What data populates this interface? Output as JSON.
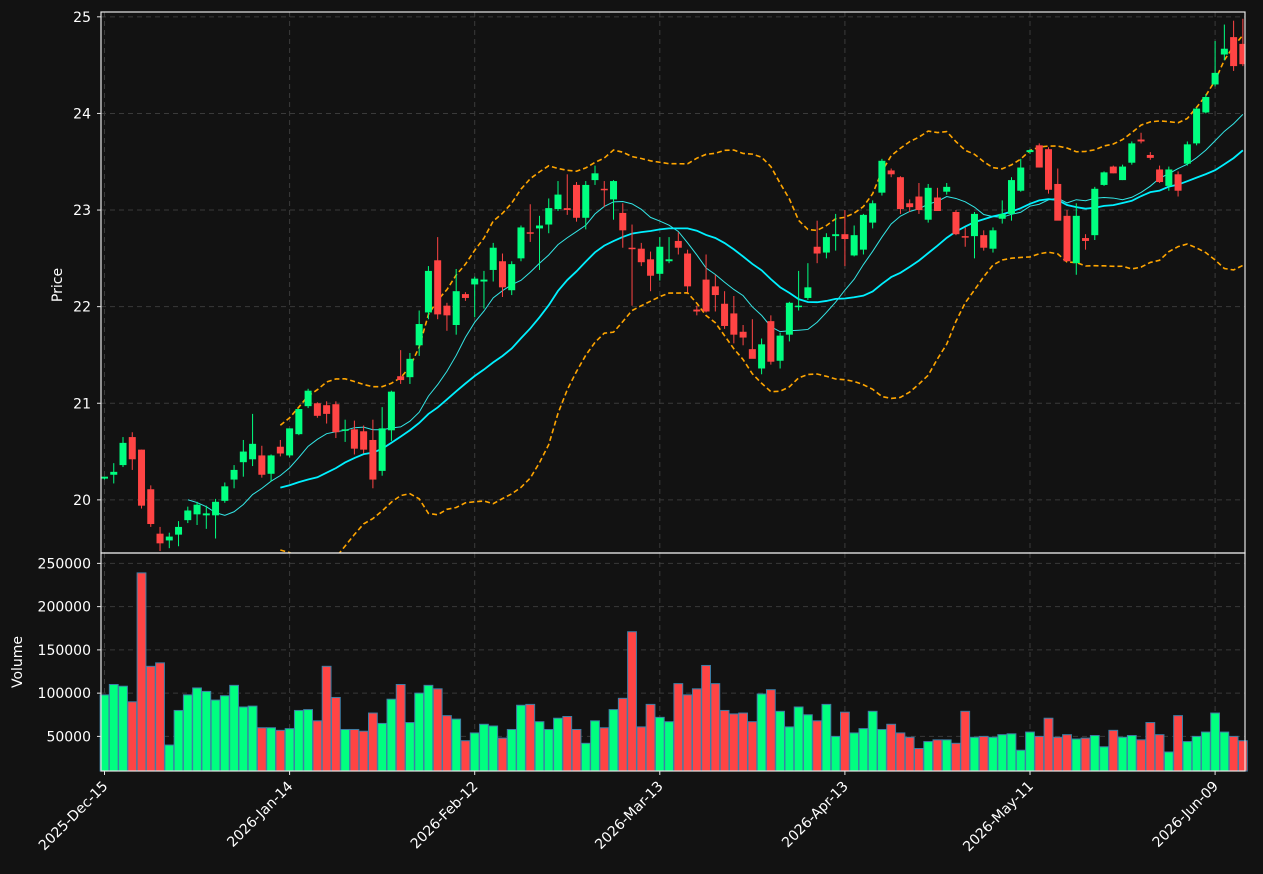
{
  "chart_data": {
    "type": "candlestick",
    "colors": {
      "background": "#121212",
      "up": "#00ff80",
      "down": "#ff4444",
      "volume_edge": "#3d7fa6",
      "mav_fast": "#33e6e6",
      "mav_slow": "#00f0ff",
      "bands": "#ffa500",
      "grid": "#3a3a3a",
      "text": "#ffffff"
    },
    "price_panel": {
      "ylabel": "Price",
      "ylim": [
        19.45,
        25.05
      ],
      "yticks": [
        20,
        21,
        22,
        23,
        24,
        25
      ]
    },
    "volume_panel": {
      "ylabel": "Volume",
      "ylim": [
        10000,
        262000
      ],
      "yticks": [
        50000,
        100000,
        150000,
        200000,
        250000
      ]
    },
    "x_ticks": [
      {
        "index": 0,
        "label": "2025-Dec-15"
      },
      {
        "index": 20,
        "label": "2026-Jan-14"
      },
      {
        "index": 40,
        "label": "2026-Feb-12"
      },
      {
        "index": 60,
        "label": "2026-Mar-13"
      },
      {
        "index": 80,
        "label": "2026-Apr-13"
      },
      {
        "index": 100,
        "label": "2026-May-11"
      },
      {
        "index": 120,
        "label": "2026-Jun-09"
      }
    ],
    "ohlc": [
      [
        20.22,
        20.24,
        20.21,
        20.24
      ],
      [
        20.26,
        20.38,
        20.17,
        20.29
      ],
      [
        20.36,
        20.65,
        20.34,
        20.59
      ],
      [
        20.65,
        20.7,
        20.31,
        20.42
      ],
      [
        20.52,
        20.52,
        19.91,
        19.94
      ],
      [
        20.11,
        20.15,
        19.72,
        19.75
      ],
      [
        19.65,
        19.72,
        19.47,
        19.55
      ],
      [
        19.58,
        19.66,
        19.5,
        19.62
      ],
      [
        19.64,
        19.78,
        19.52,
        19.72
      ],
      [
        19.79,
        19.93,
        19.76,
        19.89
      ],
      [
        19.85,
        19.98,
        19.74,
        19.95
      ],
      [
        19.84,
        19.94,
        19.7,
        19.86
      ],
      [
        19.84,
        20.01,
        19.6,
        19.98
      ],
      [
        19.99,
        20.18,
        19.97,
        20.14
      ],
      [
        20.21,
        20.36,
        20.12,
        20.31
      ],
      [
        20.39,
        20.62,
        20.24,
        20.5
      ],
      [
        20.42,
        20.89,
        20.35,
        20.58
      ],
      [
        20.46,
        20.56,
        20.23,
        20.26
      ],
      [
        20.27,
        20.47,
        20.19,
        20.46
      ],
      [
        20.55,
        20.62,
        20.45,
        20.48
      ],
      [
        20.46,
        20.74,
        20.44,
        20.74
      ],
      [
        20.68,
        20.94,
        20.67,
        20.94
      ],
      [
        20.97,
        21.15,
        20.95,
        21.13
      ],
      [
        21.0,
        21.01,
        20.85,
        20.87
      ],
      [
        20.98,
        21.02,
        20.79,
        20.89
      ],
      [
        20.99,
        21.02,
        20.64,
        20.7
      ],
      [
        20.72,
        20.83,
        20.6,
        20.73
      ],
      [
        20.73,
        20.82,
        20.47,
        20.53
      ],
      [
        20.71,
        20.77,
        20.48,
        20.52
      ],
      [
        20.62,
        20.83,
        20.12,
        20.21
      ],
      [
        20.3,
        20.96,
        20.25,
        20.74
      ],
      [
        20.72,
        21.13,
        20.61,
        21.12
      ],
      [
        21.28,
        21.55,
        21.2,
        21.24
      ],
      [
        21.27,
        21.52,
        21.2,
        21.46
      ],
      [
        21.6,
        21.96,
        21.49,
        21.82
      ],
      [
        21.94,
        22.42,
        21.87,
        22.37
      ],
      [
        22.48,
        22.72,
        21.87,
        21.92
      ],
      [
        22.01,
        22.04,
        21.75,
        21.91
      ],
      [
        21.81,
        22.39,
        21.71,
        22.16
      ],
      [
        22.13,
        22.15,
        22.06,
        22.09
      ],
      [
        22.23,
        22.31,
        21.89,
        22.29
      ],
      [
        22.26,
        22.37,
        21.98,
        22.28
      ],
      [
        22.38,
        22.66,
        22.26,
        22.61
      ],
      [
        22.47,
        22.55,
        22.1,
        22.2
      ],
      [
        22.17,
        22.47,
        22.12,
        22.44
      ],
      [
        22.5,
        22.84,
        22.47,
        22.82
      ],
      [
        22.77,
        23.06,
        22.67,
        22.76
      ],
      [
        22.81,
        22.94,
        22.38,
        22.84
      ],
      [
        22.85,
        23.12,
        22.76,
        23.02
      ],
      [
        23.01,
        23.3,
        22.99,
        23.16
      ],
      [
        23.02,
        23.37,
        22.95,
        23.0
      ],
      [
        23.26,
        23.29,
        22.88,
        22.92
      ],
      [
        22.92,
        23.3,
        22.8,
        23.26
      ],
      [
        23.31,
        23.46,
        23.26,
        23.38
      ],
      [
        23.22,
        23.3,
        23.03,
        23.21
      ],
      [
        23.11,
        23.31,
        22.9,
        23.3
      ],
      [
        22.97,
        23.07,
        22.61,
        22.79
      ],
      [
        22.61,
        22.85,
        22.01,
        22.6
      ],
      [
        22.6,
        22.66,
        22.42,
        22.46
      ],
      [
        22.49,
        22.57,
        22.16,
        22.32
      ],
      [
        22.34,
        22.72,
        22.27,
        22.62
      ],
      [
        22.47,
        22.72,
        22.45,
        22.49
      ],
      [
        22.68,
        22.77,
        22.54,
        22.61
      ],
      [
        22.55,
        22.59,
        22.15,
        22.21
      ],
      [
        21.97,
        22.01,
        21.91,
        21.95
      ],
      [
        22.28,
        22.54,
        21.94,
        21.95
      ],
      [
        22.21,
        22.33,
        21.95,
        22.12
      ],
      [
        22.03,
        22.16,
        21.77,
        21.8
      ],
      [
        21.93,
        22.11,
        21.62,
        21.71
      ],
      [
        21.74,
        21.81,
        21.6,
        21.68
      ],
      [
        21.56,
        21.87,
        21.49,
        21.46
      ],
      [
        21.36,
        21.67,
        21.3,
        21.61
      ],
      [
        21.85,
        21.91,
        21.4,
        21.43
      ],
      [
        21.44,
        21.73,
        21.36,
        21.7
      ],
      [
        21.71,
        22.05,
        21.64,
        22.04
      ],
      [
        22.01,
        22.37,
        21.96,
        22.01
      ],
      [
        22.09,
        22.45,
        22.07,
        22.2
      ],
      [
        22.62,
        22.89,
        22.45,
        22.55
      ],
      [
        22.56,
        22.76,
        22.5,
        22.72
      ],
      [
        22.73,
        22.96,
        22.58,
        22.75
      ],
      [
        22.75,
        23.0,
        22.42,
        22.7
      ],
      [
        22.53,
        22.84,
        22.52,
        22.74
      ],
      [
        22.59,
        22.96,
        22.54,
        22.95
      ],
      [
        22.87,
        23.1,
        22.81,
        23.07
      ],
      [
        23.18,
        23.53,
        23.15,
        23.51
      ],
      [
        23.41,
        23.43,
        23.34,
        23.37
      ],
      [
        23.34,
        23.35,
        22.96,
        23.01
      ],
      [
        23.07,
        23.11,
        22.98,
        23.03
      ],
      [
        23.14,
        23.28,
        22.96,
        23.0
      ],
      [
        22.9,
        23.27,
        22.87,
        23.23
      ],
      [
        23.13,
        23.23,
        22.99,
        22.99
      ],
      [
        23.19,
        23.28,
        23.16,
        23.24
      ],
      [
        22.98,
        23.0,
        22.74,
        22.75
      ],
      [
        22.73,
        22.82,
        22.62,
        22.72
      ],
      [
        22.73,
        22.98,
        22.5,
        22.96
      ],
      [
        22.74,
        22.79,
        22.58,
        22.61
      ],
      [
        22.6,
        22.82,
        22.56,
        22.79
      ],
      [
        22.91,
        23.1,
        22.86,
        22.96
      ],
      [
        22.96,
        23.34,
        22.89,
        23.31
      ],
      [
        23.2,
        23.53,
        23.19,
        23.44
      ],
      [
        23.6,
        23.63,
        23.58,
        23.62
      ],
      [
        23.67,
        23.69,
        23.44,
        23.44
      ],
      [
        23.63,
        23.65,
        23.17,
        23.21
      ],
      [
        23.27,
        23.43,
        22.9,
        22.89
      ],
      [
        22.94,
        23.0,
        22.47,
        22.47
      ],
      [
        22.45,
        23.07,
        22.33,
        22.94
      ],
      [
        22.71,
        22.75,
        22.59,
        22.68
      ],
      [
        22.74,
        23.24,
        22.69,
        23.22
      ],
      [
        23.26,
        23.4,
        23.25,
        23.39
      ],
      [
        23.45,
        23.46,
        23.38,
        23.38
      ],
      [
        23.31,
        23.47,
        23.31,
        23.45
      ],
      [
        23.49,
        23.71,
        23.47,
        23.69
      ],
      [
        23.73,
        23.8,
        23.69,
        23.71
      ],
      [
        23.57,
        23.6,
        23.52,
        23.54
      ],
      [
        23.42,
        23.46,
        23.28,
        23.29
      ],
      [
        23.25,
        23.45,
        23.2,
        23.42
      ],
      [
        23.37,
        23.4,
        23.14,
        23.2
      ],
      [
        23.48,
        23.71,
        23.46,
        23.68
      ],
      [
        23.69,
        24.06,
        23.67,
        24.05
      ],
      [
        24.01,
        24.2,
        24.0,
        24.17
      ],
      [
        24.3,
        24.75,
        24.28,
        24.42
      ],
      [
        24.61,
        24.92,
        24.55,
        24.67
      ],
      [
        24.79,
        24.96,
        24.44,
        24.49
      ],
      [
        24.72,
        24.98,
        24.49,
        24.51
      ]
    ],
    "volume": [
      98000,
      110000,
      108000,
      90000,
      239000,
      131000,
      135000,
      40000,
      80000,
      98000,
      106000,
      102000,
      92000,
      97000,
      109000,
      84000,
      85000,
      60000,
      60000,
      57000,
      59000,
      80000,
      81000,
      68000,
      131000,
      95000,
      58000,
      58000,
      56000,
      77000,
      65000,
      93000,
      110000,
      66000,
      100000,
      109000,
      105000,
      74000,
      70000,
      45000,
      54000,
      64000,
      62000,
      48000,
      58000,
      86000,
      87000,
      67000,
      58000,
      71000,
      73000,
      58000,
      42000,
      68000,
      60000,
      81000,
      94000,
      171000,
      61000,
      87000,
      72000,
      67000,
      111000,
      98000,
      105000,
      132000,
      111000,
      80000,
      76000,
      77000,
      67000,
      99000,
      104000,
      79000,
      61000,
      84000,
      75000,
      68000,
      87000,
      50000,
      78000,
      54000,
      59000,
      79000,
      58000,
      64000,
      54000,
      49000,
      36000,
      44000,
      46000,
      46000,
      42000,
      79000,
      49000,
      50000,
      49000,
      52000,
      53000,
      34000,
      55000,
      50000,
      71000,
      49000,
      52000,
      47000,
      48000,
      51000,
      38000,
      57000,
      49000,
      51000,
      46000,
      66000,
      52000,
      32000,
      74000,
      44000,
      50000,
      55000,
      77000,
      55000,
      50000,
      45000
    ]
  }
}
